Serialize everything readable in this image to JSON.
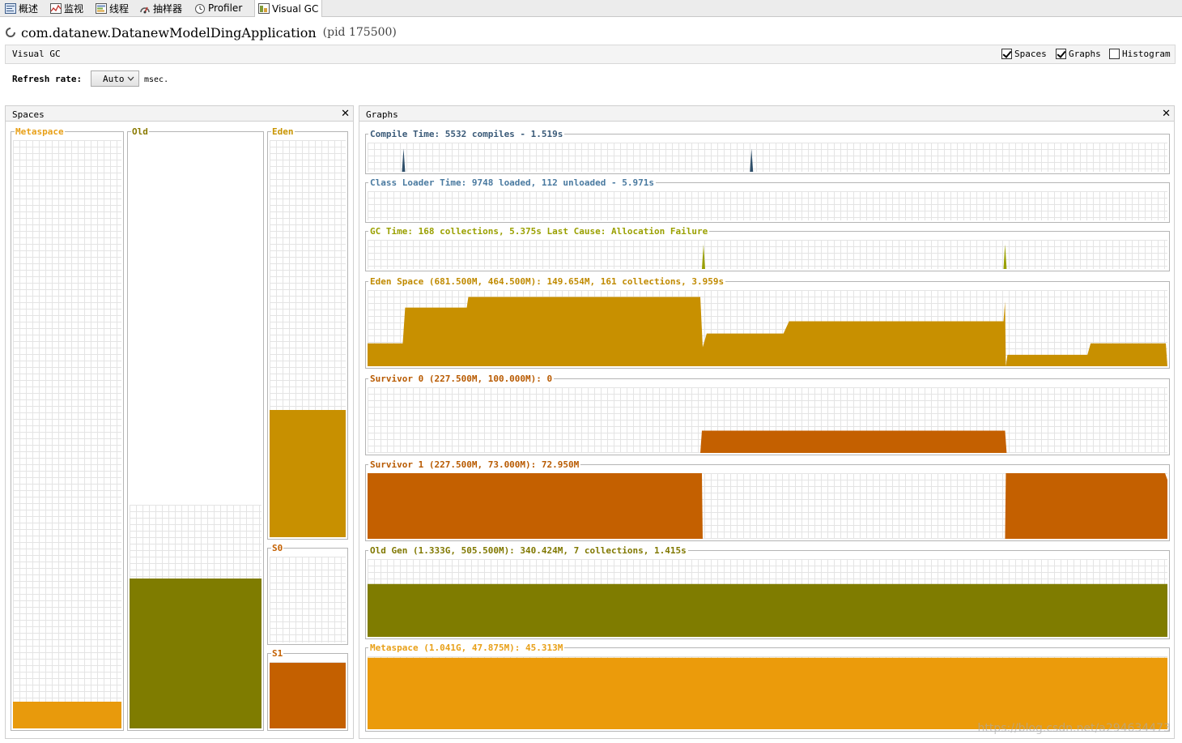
{
  "tabs": [
    {
      "label": "概述",
      "icon": "overview-icon"
    },
    {
      "label": "监视",
      "icon": "monitor-icon"
    },
    {
      "label": "线程",
      "icon": "threads-icon"
    },
    {
      "label": "抽样器",
      "icon": "sampler-icon"
    },
    {
      "label": "Profiler",
      "icon": "profiler-icon"
    },
    {
      "label": "Visual GC",
      "icon": "visual-gc-icon"
    }
  ],
  "app": {
    "name": "com.datanew.DatanewModelDingApplication",
    "pid": "(pid 175500)"
  },
  "header": {
    "title": "Visual GC",
    "toggles": [
      {
        "label": "Spaces",
        "checked": true
      },
      {
        "label": "Graphs",
        "checked": true
      },
      {
        "label": "Histogram",
        "checked": false
      }
    ]
  },
  "refresh": {
    "label": "Refresh rate:",
    "value": "Auto",
    "unit": "msec."
  },
  "spaces_panel": {
    "title": "Spaces",
    "spaces": [
      {
        "label": "Metaspace",
        "used_fraction": 0.045,
        "committed_fraction": 1.0,
        "color": "#e89a0c",
        "label_color": "#e8a018"
      },
      {
        "label": "Old",
        "used_fraction": 0.255,
        "committed_fraction": 0.38,
        "color": "#7f7c00",
        "label_color": "#8a7a00"
      },
      {
        "label": "Eden",
        "used_fraction": 0.32,
        "committed_fraction": 1.0,
        "color": "#c89000",
        "label_color": "#c89400"
      },
      {
        "label": "S0",
        "used_fraction": 0.0,
        "committed_fraction": 1.0,
        "color": "#c46000",
        "label_color": "#c46000"
      },
      {
        "label": "S1",
        "used_fraction": 0.99,
        "committed_fraction": 1.0,
        "color": "#c46000",
        "label_color": "#c46000"
      }
    ]
  },
  "graphs_panel": {
    "title": "Graphs",
    "graphs": [
      {
        "label": "Compile Time: 5532 compiles - 1.519s",
        "label_color": "#3a5a78",
        "fill": "#2f4f6a",
        "type": "spikes",
        "spikes": [
          [
            0.045,
            0.8
          ],
          [
            0.48,
            0.8
          ]
        ]
      },
      {
        "label": "Class Loader Time: 9748 loaded, 112 unloaded - 5.971s",
        "label_color": "#4a7aa0",
        "fill": "#4a7aa0",
        "type": "spikes",
        "spikes": []
      },
      {
        "label": "GC Time: 168 collections, 5.375s  Last Cause: Allocation Failure",
        "label_color": "#9aa000",
        "fill": "#9aa000",
        "type": "spikes",
        "spikes": [
          [
            0.42,
            0.85
          ],
          [
            0.797,
            0.85
          ]
        ]
      },
      {
        "label": "Eden Space (681.500M, 464.500M): 149.654M, 161 collections, 3.959s",
        "label_color": "#c08a00",
        "fill": "#c89000",
        "type": "step",
        "steps": [
          [
            0,
            0.3
          ],
          [
            0.044,
            0.3
          ],
          [
            0.047,
            0.77
          ],
          [
            0.124,
            0.77
          ],
          [
            0.126,
            0.91
          ],
          [
            0.416,
            0.91
          ],
          [
            0.419,
            0.25
          ],
          [
            0.424,
            0.43
          ],
          [
            0.52,
            0.43
          ],
          [
            0.527,
            0.59
          ],
          [
            0.795,
            0.59
          ],
          [
            0.797,
            0.85
          ],
          [
            0.798,
            0.0
          ],
          [
            0.8,
            0.15
          ],
          [
            0.9,
            0.15
          ],
          [
            0.904,
            0.3
          ],
          [
            0.998,
            0.3
          ],
          [
            1.0,
            0.0
          ]
        ]
      },
      {
        "label": "Survivor 0 (227.500M, 100.000M): 0",
        "label_color": "#b85a00",
        "fill": "#c46000",
        "type": "step",
        "steps": [
          [
            0,
            0
          ],
          [
            0.416,
            0
          ],
          [
            0.418,
            0.34
          ],
          [
            0.797,
            0.34
          ],
          [
            0.799,
            0
          ],
          [
            1.0,
            0
          ]
        ]
      },
      {
        "label": "Survivor 1 (227.500M, 73.000M): 72.950M",
        "label_color": "#b85a00",
        "fill": "#c46000",
        "type": "step",
        "steps": [
          [
            0,
            1.0
          ],
          [
            0.418,
            1.0
          ],
          [
            0.419,
            0
          ],
          [
            0.797,
            0
          ],
          [
            0.798,
            1.0
          ],
          [
            0.997,
            1.0
          ],
          [
            1.0,
            0.9
          ]
        ]
      },
      {
        "label": "Old Gen (1.333G, 505.500M): 340.424M, 7 collections, 1.415s",
        "label_color": "#807800",
        "fill": "#7f7c00",
        "type": "step",
        "steps": [
          [
            0,
            0.68
          ],
          [
            1.0,
            0.68
          ]
        ]
      },
      {
        "label": "Metaspace (1.041G, 47.875M): 45.313M",
        "label_color": "#e8a018",
        "fill": "#eb9b0b",
        "type": "step",
        "steps": [
          [
            0,
            0.98
          ],
          [
            1.0,
            0.98
          ]
        ]
      }
    ]
  },
  "watermark": "https://blog.csdn.net/a294634473"
}
